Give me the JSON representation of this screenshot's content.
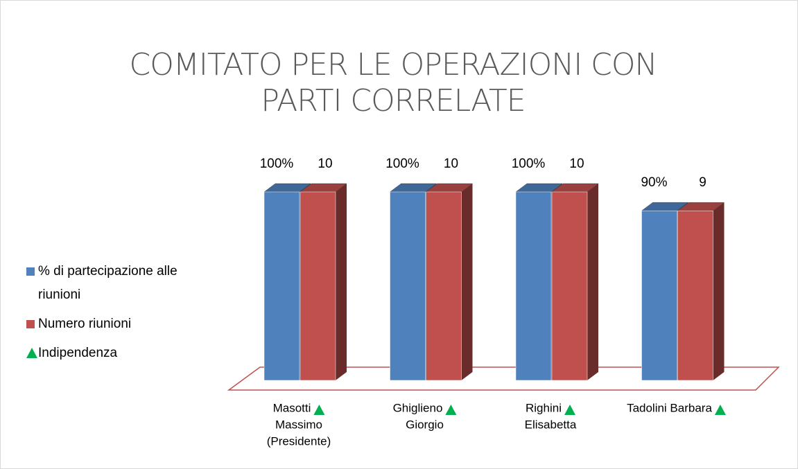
{
  "chart_data": {
    "type": "bar3d",
    "title": [
      "COMITATO PER LE OPERAZIONI CON",
      "PARTI CORRELATE"
    ],
    "categories": [
      [
        "Masotti",
        "Massimo",
        "(Presidente)"
      ],
      [
        "Ghiglieno",
        "Giorgio"
      ],
      [
        "Righini",
        "Elisabetta"
      ],
      [
        "Tadolini Barbara"
      ]
    ],
    "series": [
      {
        "name": [
          "% di partecipazione alle",
          "riunioni"
        ],
        "color": "#4f81bd",
        "values": [
          100,
          100,
          100,
          90
        ],
        "value_labels": [
          "100%",
          "100%",
          "100%",
          "90%"
        ]
      },
      {
        "name": [
          "Numero riunioni"
        ],
        "color": "#c0504d",
        "values": [
          10,
          10,
          10,
          9
        ],
        "axis": "y2"
      }
    ],
    "marker": {
      "name": "Indipendenza",
      "color": "#00b050"
    },
    "independent": [
      true,
      true,
      true,
      true
    ],
    "ylim": [
      0,
      100
    ],
    "y2lim": [
      0,
      10
    ],
    "floor_color": "#c0504d"
  }
}
